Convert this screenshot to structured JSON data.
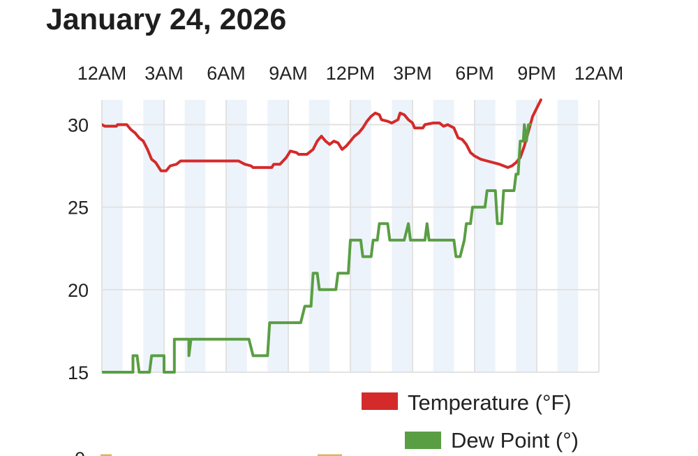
{
  "title": "January 24, 2026",
  "chart_data": {
    "type": "line",
    "x_tick_labels": [
      "12AM",
      "3AM",
      "6AM",
      "9AM",
      "12PM",
      "3PM",
      "6PM",
      "9PM",
      "12AM"
    ],
    "xlim": [
      0,
      24
    ],
    "ylim": [
      15,
      31.5
    ],
    "y_ticks": [
      15,
      20,
      25,
      30
    ],
    "y_tick_labels": [
      "15",
      "20",
      "25",
      "30"
    ],
    "grid": true,
    "legend_position": "bottom-right",
    "series": [
      {
        "name": "Temperature (°F)",
        "color": "#d42a2a",
        "points": [
          [
            0,
            30.0
          ],
          [
            0.15,
            29.9
          ],
          [
            0.7,
            29.9
          ],
          [
            0.75,
            30.0
          ],
          [
            1.2,
            30.0
          ],
          [
            1.4,
            29.7
          ],
          [
            1.6,
            29.5
          ],
          [
            1.8,
            29.2
          ],
          [
            2.0,
            29.0
          ],
          [
            2.2,
            28.5
          ],
          [
            2.4,
            27.9
          ],
          [
            2.6,
            27.7
          ],
          [
            2.85,
            27.2
          ],
          [
            3.1,
            27.2
          ],
          [
            3.3,
            27.5
          ],
          [
            3.6,
            27.6
          ],
          [
            3.8,
            27.8
          ],
          [
            6.6,
            27.8
          ],
          [
            6.9,
            27.6
          ],
          [
            7.2,
            27.5
          ],
          [
            7.3,
            27.4
          ],
          [
            8.2,
            27.4
          ],
          [
            8.3,
            27.6
          ],
          [
            8.6,
            27.6
          ],
          [
            8.9,
            28.0
          ],
          [
            9.1,
            28.4
          ],
          [
            9.4,
            28.3
          ],
          [
            9.5,
            28.2
          ],
          [
            9.9,
            28.2
          ],
          [
            10.2,
            28.5
          ],
          [
            10.4,
            29.0
          ],
          [
            10.6,
            29.3
          ],
          [
            10.8,
            29.0
          ],
          [
            11.0,
            28.8
          ],
          [
            11.2,
            29.0
          ],
          [
            11.4,
            28.9
          ],
          [
            11.6,
            28.5
          ],
          [
            11.8,
            28.7
          ],
          [
            12.0,
            29.0
          ],
          [
            12.2,
            29.3
          ],
          [
            12.4,
            29.5
          ],
          [
            12.6,
            29.8
          ],
          [
            12.8,
            30.2
          ],
          [
            13.0,
            30.5
          ],
          [
            13.2,
            30.7
          ],
          [
            13.4,
            30.6
          ],
          [
            13.5,
            30.3
          ],
          [
            13.8,
            30.2
          ],
          [
            14.0,
            30.1
          ],
          [
            14.3,
            30.3
          ],
          [
            14.4,
            30.7
          ],
          [
            14.6,
            30.6
          ],
          [
            14.8,
            30.3
          ],
          [
            15.0,
            30.1
          ],
          [
            15.1,
            29.8
          ],
          [
            15.5,
            29.8
          ],
          [
            15.6,
            30.0
          ],
          [
            16.0,
            30.1
          ],
          [
            16.3,
            30.1
          ],
          [
            16.5,
            29.9
          ],
          [
            16.7,
            30.0
          ],
          [
            17.0,
            29.8
          ],
          [
            17.2,
            29.2
          ],
          [
            17.4,
            29.1
          ],
          [
            17.6,
            28.8
          ],
          [
            17.8,
            28.3
          ],
          [
            18.0,
            28.1
          ],
          [
            18.3,
            27.9
          ],
          [
            18.6,
            27.8
          ],
          [
            19.2,
            27.6
          ],
          [
            19.4,
            27.5
          ],
          [
            19.6,
            27.4
          ],
          [
            19.8,
            27.5
          ],
          [
            20.0,
            27.7
          ],
          [
            20.2,
            28.0
          ],
          [
            20.4,
            28.7
          ],
          [
            20.6,
            29.6
          ],
          [
            20.8,
            30.5
          ],
          [
            21.0,
            31.0
          ],
          [
            21.2,
            31.5
          ]
        ]
      },
      {
        "name": "Dew Point (°)",
        "color": "#5a9e44",
        "points": [
          [
            0,
            15
          ],
          [
            1.5,
            15
          ],
          [
            1.5,
            16
          ],
          [
            1.7,
            16
          ],
          [
            1.8,
            15
          ],
          [
            2.3,
            15
          ],
          [
            2.4,
            16
          ],
          [
            3.0,
            16
          ],
          [
            3.0,
            15
          ],
          [
            3.5,
            15
          ],
          [
            3.5,
            17
          ],
          [
            4.2,
            17
          ],
          [
            4.2,
            16
          ],
          [
            4.3,
            17
          ],
          [
            7.1,
            17
          ],
          [
            7.3,
            16
          ],
          [
            8.0,
            16
          ],
          [
            8.1,
            18
          ],
          [
            9.6,
            18
          ],
          [
            9.8,
            19
          ],
          [
            10.1,
            19
          ],
          [
            10.2,
            21
          ],
          [
            10.4,
            21
          ],
          [
            10.5,
            20
          ],
          [
            11.3,
            20
          ],
          [
            11.4,
            21
          ],
          [
            11.9,
            21
          ],
          [
            12.0,
            23
          ],
          [
            12.5,
            23
          ],
          [
            12.6,
            22
          ],
          [
            13.0,
            22
          ],
          [
            13.1,
            23
          ],
          [
            13.3,
            23
          ],
          [
            13.4,
            24
          ],
          [
            13.8,
            24
          ],
          [
            13.9,
            23
          ],
          [
            14.6,
            23
          ],
          [
            14.8,
            24
          ],
          [
            14.9,
            23
          ],
          [
            15.6,
            23
          ],
          [
            15.7,
            24
          ],
          [
            15.8,
            23
          ],
          [
            17.0,
            23
          ],
          [
            17.1,
            22
          ],
          [
            17.3,
            22
          ],
          [
            17.5,
            23
          ],
          [
            17.6,
            24
          ],
          [
            17.8,
            24
          ],
          [
            17.9,
            25
          ],
          [
            18.5,
            25
          ],
          [
            18.6,
            26
          ],
          [
            19.0,
            26
          ],
          [
            19.1,
            24
          ],
          [
            19.3,
            24
          ],
          [
            19.4,
            26
          ],
          [
            19.9,
            26
          ],
          [
            20.0,
            27
          ],
          [
            20.1,
            27
          ],
          [
            20.2,
            29
          ],
          [
            20.35,
            29
          ],
          [
            20.4,
            30
          ],
          [
            20.5,
            29
          ],
          [
            20.6,
            30
          ],
          [
            20.7,
            30
          ]
        ]
      }
    ]
  }
}
